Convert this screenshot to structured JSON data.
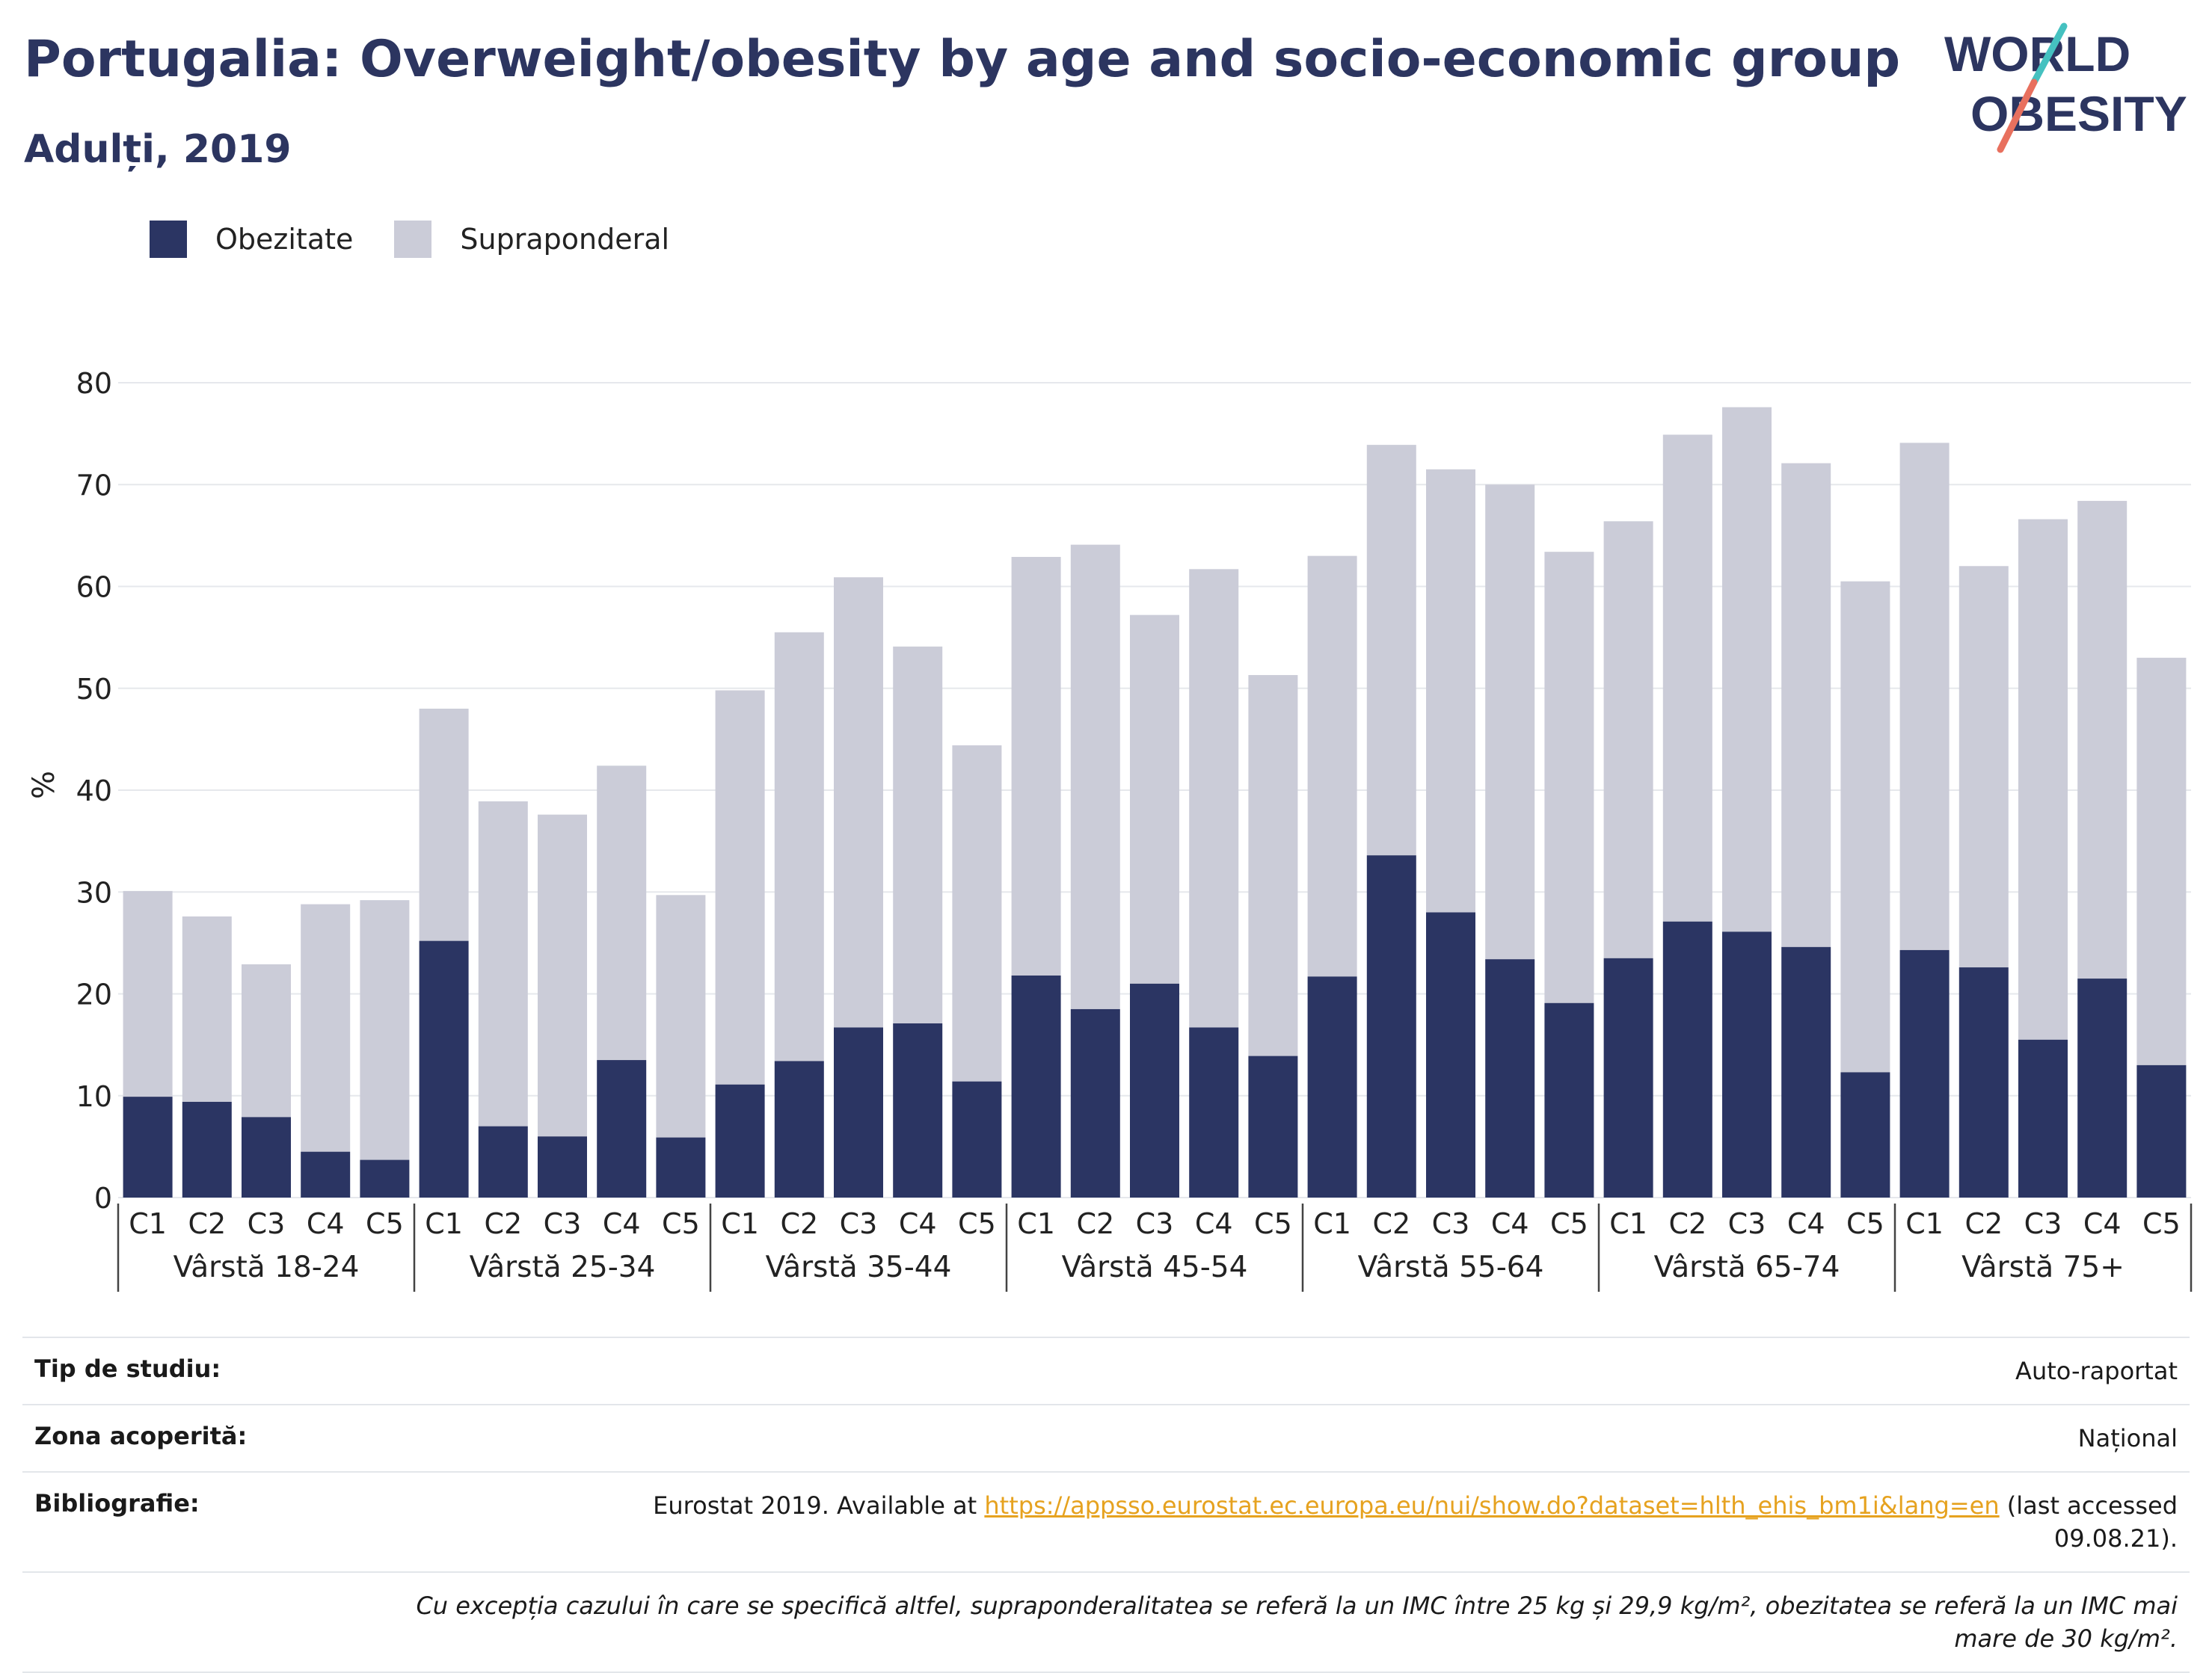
{
  "header": {
    "title": "Portugalia: Overweight/obesity by age and socio-economic group",
    "subtitle": "Adulți, 2019"
  },
  "logo": {
    "line1": "WORLD",
    "line2": "OBESITY"
  },
  "colors": {
    "obesity": "#2b3563",
    "overweight": "#cbccd8",
    "title": "#2c3560",
    "logo_teal": "#45c1c0",
    "logo_coral": "#e8705e"
  },
  "chart_data": {
    "type": "bar",
    "stacked": true,
    "ylabel": "%",
    "ylim": [
      0,
      80
    ],
    "yticks": [
      0,
      10,
      20,
      30,
      40,
      50,
      60,
      70,
      80
    ],
    "grid": true,
    "legend_position": "top-left",
    "groups": [
      "Vârstă 18-24",
      "Vârstă 25-34",
      "Vârstă 35-44",
      "Vârstă 45-54",
      "Vârstă 55-64",
      "Vârstă 65-74",
      "Vârstă 75+"
    ],
    "categories": [
      "C1",
      "C2",
      "C3",
      "C4",
      "C5"
    ],
    "series": [
      {
        "name": "Obezitate",
        "values": [
          [
            9.9,
            9.4,
            7.9,
            4.5,
            3.7
          ],
          [
            25.2,
            7.0,
            6.0,
            13.5,
            5.9
          ],
          [
            11.1,
            13.4,
            16.7,
            17.1,
            11.4
          ],
          [
            21.8,
            18.5,
            21.0,
            16.7,
            13.9
          ],
          [
            21.7,
            33.6,
            28.0,
            23.4,
            19.1
          ],
          [
            23.5,
            27.1,
            26.1,
            24.6,
            12.3
          ],
          [
            24.3,
            22.6,
            15.5,
            21.5,
            13.0
          ]
        ]
      },
      {
        "name": "Supraponderal",
        "values": [
          [
            20.2,
            18.2,
            15.0,
            24.3,
            25.5
          ],
          [
            22.8,
            31.9,
            31.6,
            28.9,
            23.8
          ],
          [
            38.7,
            42.1,
            44.2,
            37.0,
            33.0
          ],
          [
            41.1,
            45.6,
            36.2,
            45.0,
            37.4
          ],
          [
            41.3,
            40.3,
            43.5,
            46.6,
            44.3
          ],
          [
            42.9,
            47.8,
            51.5,
            47.5,
            48.2
          ],
          [
            49.8,
            39.4,
            51.1,
            46.9,
            40.0
          ]
        ]
      }
    ]
  },
  "info": {
    "study_type_label": "Tip de studiu:",
    "study_type_value": "Auto-raportat",
    "coverage_label": "Zona acoperită:",
    "coverage_value": "Național",
    "bibliography_label": "Bibliografie:",
    "bibliography_prefix": "Eurostat 2019. Available at",
    "bibliography_link": "https://appsso.eurostat.ec.europa.eu/nui/show.do?dataset=hlth_ehis_bm1i&lang=en",
    "bibliography_suffix_1": "(last accessed",
    "bibliography_suffix_2": "09.08.21).",
    "note": "Cu excepția cazului în care se specifică altfel, supraponderalitatea se referă la un IMC între 25 kg și 29,9 kg/m², obezitatea se referă la un IMC mai mare de 30 kg/m²."
  }
}
